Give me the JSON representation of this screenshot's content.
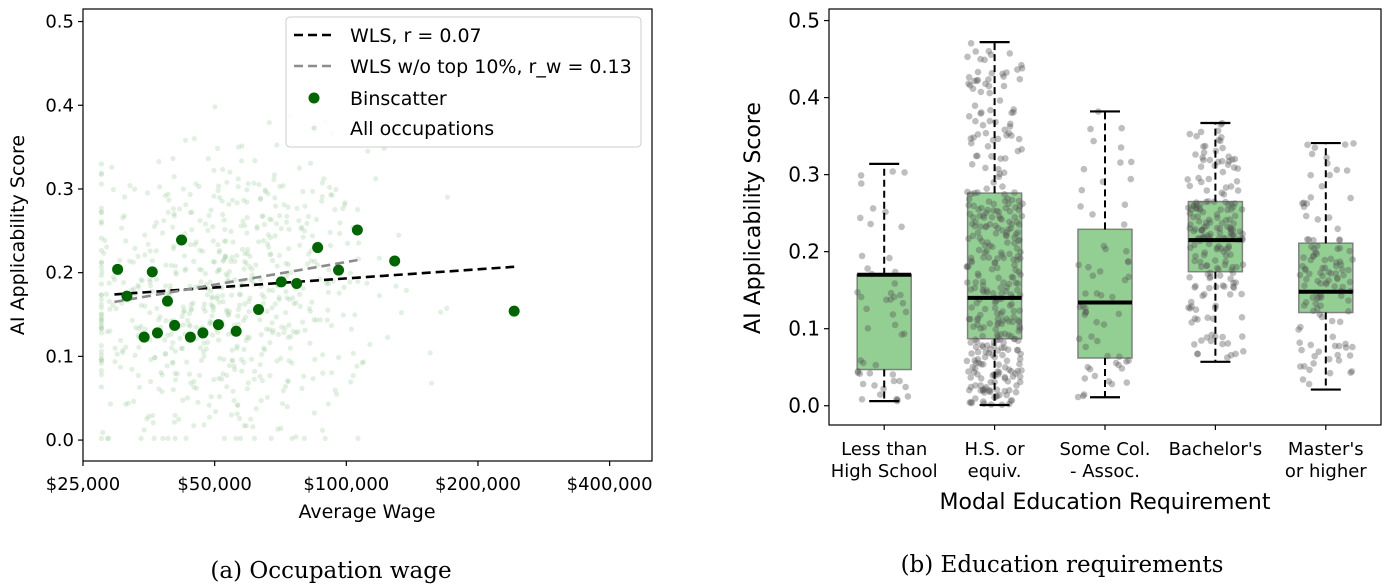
{
  "chart_data": [
    {
      "type": "scatter",
      "caption": "(a) Occupation wage",
      "xlabel": "Average Wage",
      "ylabel": "AI Applicability Score",
      "x_scale": "log",
      "xlim": [
        25000,
        500000
      ],
      "ylim": [
        -0.025,
        0.515
      ],
      "x_ticks": [
        {
          "value": 25000,
          "label": "$25,000"
        },
        {
          "value": 50000,
          "label": "$50,000"
        },
        {
          "value": 100000,
          "label": "$100,000"
        },
        {
          "value": 200000,
          "label": "$200,000"
        },
        {
          "value": 400000,
          "label": "$400,000"
        }
      ],
      "y_ticks": [
        0.0,
        0.1,
        0.2,
        0.3,
        0.4,
        0.5
      ],
      "y_tick_labels": [
        "0.0",
        "0.1",
        "0.2",
        "0.3",
        "0.4",
        "0.5"
      ],
      "legend": {
        "position": "top-right",
        "entries": [
          {
            "label": "WLS, r = 0.07",
            "style": "dashed-black"
          },
          {
            "label": "WLS w/o top 10%, r_w = 0.13",
            "style": "dashed-gray"
          },
          {
            "label": "Binscatter",
            "style": "dot-darkgreen"
          },
          {
            "label": "All occupations",
            "style": "dot-lightgreen"
          }
        ]
      },
      "colors": {
        "binscatter": "#006400",
        "all_occupations": "#98c898",
        "wls": "#000000",
        "wls_trim": "#8c8c8c"
      },
      "series": [
        {
          "name": "Binscatter",
          "points": [
            {
              "x": 30000,
              "y": 0.204
            },
            {
              "x": 31500,
              "y": 0.172
            },
            {
              "x": 36000,
              "y": 0.201
            },
            {
              "x": 34500,
              "y": 0.123
            },
            {
              "x": 37000,
              "y": 0.128
            },
            {
              "x": 39000,
              "y": 0.166
            },
            {
              "x": 40500,
              "y": 0.137
            },
            {
              "x": 42000,
              "y": 0.239
            },
            {
              "x": 44000,
              "y": 0.123
            },
            {
              "x": 47000,
              "y": 0.128
            },
            {
              "x": 51000,
              "y": 0.138
            },
            {
              "x": 56000,
              "y": 0.13
            },
            {
              "x": 63000,
              "y": 0.156
            },
            {
              "x": 71000,
              "y": 0.189
            },
            {
              "x": 77000,
              "y": 0.187
            },
            {
              "x": 86000,
              "y": 0.23
            },
            {
              "x": 96000,
              "y": 0.203
            },
            {
              "x": 106000,
              "y": 0.251
            },
            {
              "x": 129000,
              "y": 0.214
            },
            {
              "x": 242000,
              "y": 0.154
            }
          ]
        },
        {
          "name": "WLS, r = 0.07",
          "points": [
            {
              "x": 29500,
              "y": 0.174
            },
            {
              "x": 242000,
              "y": 0.207
            }
          ]
        },
        {
          "name": "WLS w/o top 10%, r_w = 0.13",
          "points": [
            {
              "x": 29500,
              "y": 0.165
            },
            {
              "x": 106000,
              "y": 0.215
            }
          ]
        }
      ]
    },
    {
      "type": "box",
      "caption": "(b) Education requirements",
      "xlabel": "Modal Education Requirement",
      "ylabel": "AI Applicability Score",
      "ylim": [
        -0.025,
        0.515
      ],
      "y_ticks": [
        0.0,
        0.1,
        0.2,
        0.3,
        0.4,
        0.5
      ],
      "y_tick_labels": [
        "0.0",
        "0.1",
        "0.2",
        "0.3",
        "0.4",
        "0.5"
      ],
      "categories": [
        [
          "Less than",
          "High School"
        ],
        [
          "H.S. or",
          "equiv."
        ],
        [
          "Some Col.",
          "- Assoc."
        ],
        [
          "Bachelor's"
        ],
        [
          "Master's",
          "or higher"
        ]
      ],
      "colors": {
        "box_fill": "#93cf93",
        "box_edge": "#808080",
        "jitter": "#555555",
        "median": "#000000"
      },
      "boxes": [
        {
          "whisker_low": 0.006,
          "q1": 0.047,
          "median": 0.17,
          "q3": 0.17,
          "whisker_high": 0.314,
          "n_points": 50
        },
        {
          "whisker_low": 0.001,
          "q1": 0.087,
          "median": 0.14,
          "q3": 0.276,
          "whisker_high": 0.472,
          "n_points": 360
        },
        {
          "whisker_low": 0.011,
          "q1": 0.062,
          "median": 0.134,
          "q3": 0.229,
          "whisker_high": 0.382,
          "n_points": 60
        },
        {
          "whisker_low": 0.057,
          "q1": 0.174,
          "median": 0.215,
          "q3": 0.265,
          "whisker_high": 0.367,
          "n_points": 200
        },
        {
          "whisker_low": 0.021,
          "q1": 0.121,
          "median": 0.148,
          "q3": 0.211,
          "whisker_high": 0.341,
          "n_points": 120
        }
      ]
    }
  ]
}
